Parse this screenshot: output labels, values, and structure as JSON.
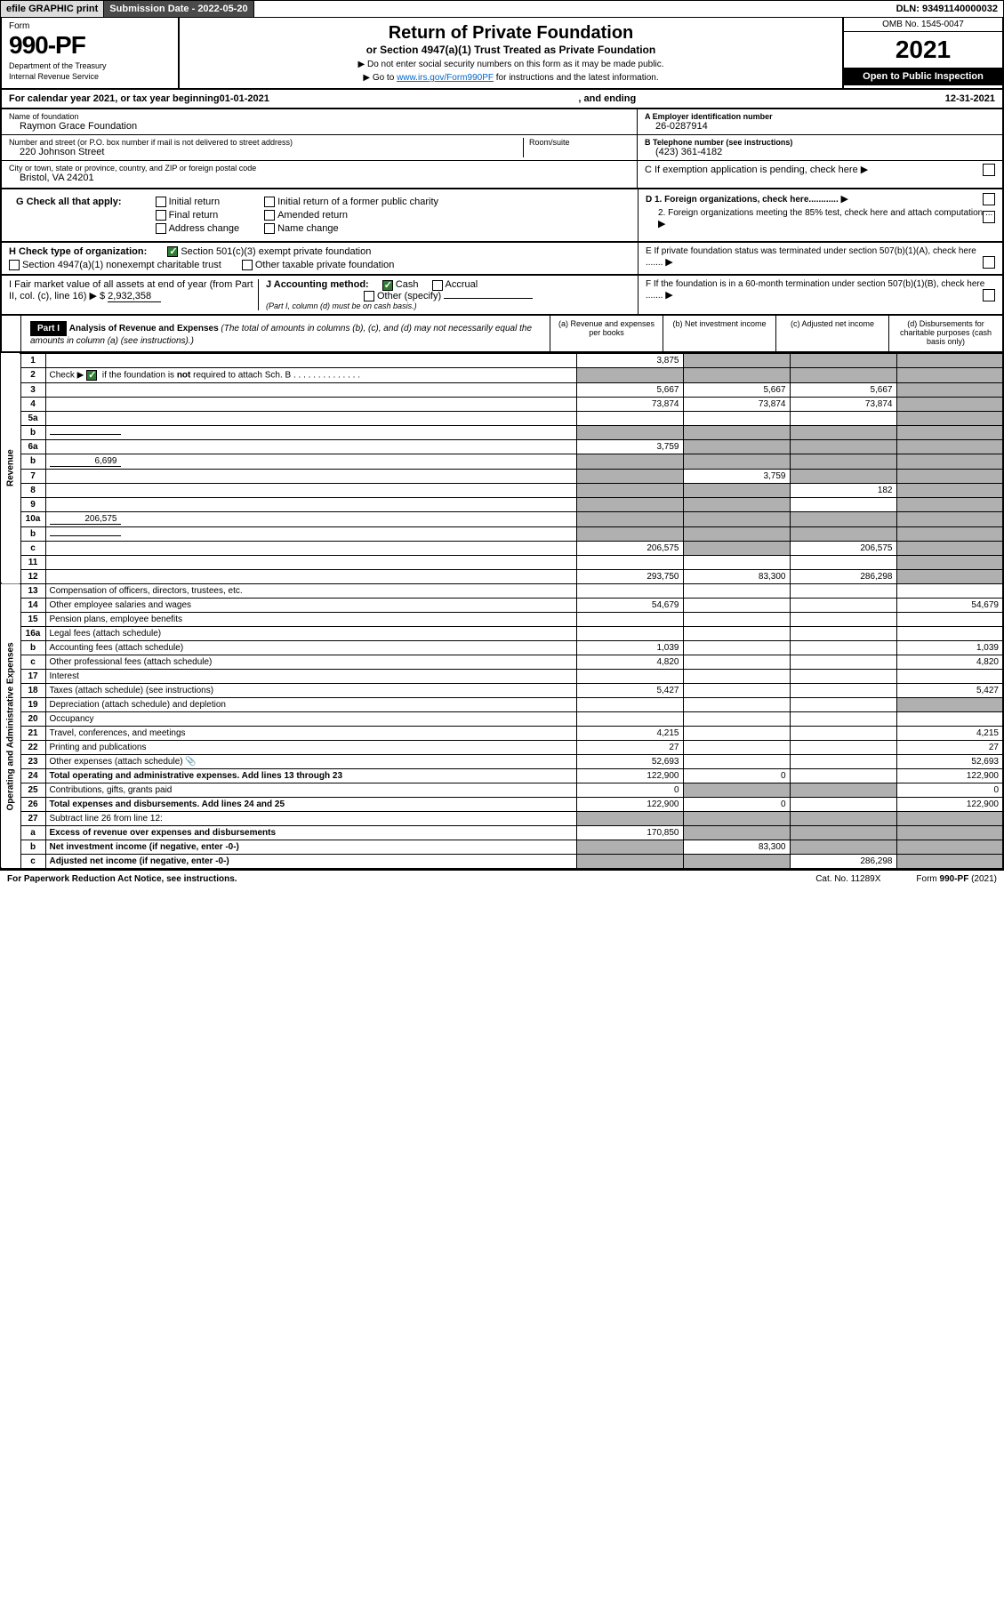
{
  "topbar": {
    "efile": "efile GRAPHIC print",
    "subdate_label": "Submission Date - 2022-05-20",
    "dln": "DLN: 93491140000032"
  },
  "header": {
    "form_label": "Form",
    "form_num": "990-PF",
    "dept1": "Department of the Treasury",
    "dept2": "Internal Revenue Service",
    "title": "Return of Private Foundation",
    "subtitle": "or Section 4947(a)(1) Trust Treated as Private Foundation",
    "note1": "▶ Do not enter social security numbers on this form as it may be made public.",
    "note2_pre": "▶ Go to ",
    "note2_link": "www.irs.gov/Form990PF",
    "note2_post": " for instructions and the latest information.",
    "omb": "OMB No. 1545-0047",
    "year": "2021",
    "open": "Open to Public Inspection"
  },
  "calyear": {
    "text_pre": "For calendar year 2021, or tax year beginning ",
    "begin": "01-01-2021",
    "text_mid": " , and ending ",
    "end": "12-31-2021"
  },
  "info": {
    "name_label": "Name of foundation",
    "name": "Raymon Grace Foundation",
    "addr_label": "Number and street (or P.O. box number if mail is not delivered to street address)",
    "addr": "220 Johnson Street",
    "room_label": "Room/suite",
    "city_label": "City or town, state or province, country, and ZIP or foreign postal code",
    "city": "Bristol, VA  24201",
    "a_label": "A Employer identification number",
    "a_val": "26-0287914",
    "b_label": "B Telephone number (see instructions)",
    "b_val": "(423) 361-4182",
    "c_label": "C If exemption application is pending, check here",
    "d1_label": "D 1. Foreign organizations, check here............",
    "d2_label": "2. Foreign organizations meeting the 85% test, check here and attach computation ...",
    "e_label": "E  If private foundation status was terminated under section 507(b)(1)(A), check here .......",
    "f_label": "F  If the foundation is in a 60-month termination under section 507(b)(1)(B), check here .......",
    "g_label": "G Check all that apply:",
    "g_initial": "Initial return",
    "g_initial_former": "Initial return of a former public charity",
    "g_final": "Final return",
    "g_amended": "Amended return",
    "g_addr": "Address change",
    "g_name": "Name change",
    "h_label": "H Check type of organization:",
    "h_501c3": "Section 501(c)(3) exempt private foundation",
    "h_4947": "Section 4947(a)(1) nonexempt charitable trust",
    "h_other": "Other taxable private foundation",
    "i_label": "I Fair market value of all assets at end of year (from Part II, col. (c), line 16) ▶ $",
    "i_val": "2,932,358",
    "j_label": "J Accounting method:",
    "j_cash": "Cash",
    "j_accrual": "Accrual",
    "j_other": "Other (specify)",
    "j_note": "(Part I, column (d) must be on cash basis.)"
  },
  "part1": {
    "header": "Part I",
    "title": "Analysis of Revenue and Expenses",
    "title_note": " (The total of amounts in columns (b), (c), and (d) may not necessarily equal the amounts in column (a) (see instructions).)",
    "col_a": "(a)   Revenue and expenses per books",
    "col_b": "(b)   Net investment income",
    "col_c": "(c)   Adjusted net income",
    "col_d": "(d)   Disbursements for charitable purposes (cash basis only)",
    "side_revenue": "Revenue",
    "side_expenses": "Operating and Administrative Expenses"
  },
  "rows": [
    {
      "n": "1",
      "d": "",
      "a": "3,875",
      "b": "",
      "c": "",
      "b_shade": true,
      "c_shade": true,
      "d_shade": true
    },
    {
      "n": "2",
      "d": "",
      "a": "",
      "b": "",
      "c": "",
      "a_shade": true,
      "b_shade": true,
      "c_shade": true,
      "d_shade": true,
      "bold_not": true
    },
    {
      "n": "3",
      "d": "",
      "a": "5,667",
      "b": "5,667",
      "c": "5,667",
      "d_shade": true
    },
    {
      "n": "4",
      "d": "",
      "a": "73,874",
      "b": "73,874",
      "c": "73,874",
      "d_shade": true
    },
    {
      "n": "5a",
      "d": "",
      "a": "",
      "b": "",
      "c": "",
      "d_shade": true
    },
    {
      "n": "b",
      "d": "",
      "a": "",
      "b": "",
      "c": "",
      "a_shade": true,
      "b_shade": true,
      "c_shade": true,
      "d_shade": true,
      "inline": true
    },
    {
      "n": "6a",
      "d": "",
      "a": "3,759",
      "b": "",
      "c": "",
      "b_shade": true,
      "c_shade": true,
      "d_shade": true
    },
    {
      "n": "b",
      "d": "",
      "a": "",
      "b": "",
      "c": "",
      "a_shade": true,
      "b_shade": true,
      "c_shade": true,
      "d_shade": true,
      "inline_val": "6,699"
    },
    {
      "n": "7",
      "d": "",
      "a": "",
      "b": "3,759",
      "c": "",
      "a_shade": true,
      "c_shade": true,
      "d_shade": true
    },
    {
      "n": "8",
      "d": "",
      "a": "",
      "b": "",
      "c": "182",
      "a_shade": true,
      "b_shade": true,
      "d_shade": true
    },
    {
      "n": "9",
      "d": "",
      "a": "",
      "b": "",
      "c": "",
      "a_shade": true,
      "b_shade": true,
      "d_shade": true
    },
    {
      "n": "10a",
      "d": "",
      "a": "",
      "b": "",
      "c": "",
      "a_shade": true,
      "b_shade": true,
      "c_shade": true,
      "d_shade": true,
      "inline_val": "206,575"
    },
    {
      "n": "b",
      "d": "",
      "a": "",
      "b": "",
      "c": "",
      "a_shade": true,
      "b_shade": true,
      "c_shade": true,
      "d_shade": true,
      "inline": true
    },
    {
      "n": "c",
      "d": "",
      "a": "206,575",
      "b": "",
      "c": "206,575",
      "b_shade": true,
      "d_shade": true
    },
    {
      "n": "11",
      "d": "",
      "a": "",
      "b": "",
      "c": "",
      "d_shade": true
    },
    {
      "n": "12",
      "d": "",
      "a": "293,750",
      "b": "83,300",
      "c": "286,298",
      "bold": true,
      "d_shade": true
    }
  ],
  "exp_rows": [
    {
      "n": "13",
      "d": "Compensation of officers, directors, trustees, etc.",
      "a": "",
      "b": "",
      "c": "",
      "dd": ""
    },
    {
      "n": "14",
      "d": "Other employee salaries and wages",
      "a": "54,679",
      "b": "",
      "c": "",
      "dd": "54,679"
    },
    {
      "n": "15",
      "d": "Pension plans, employee benefits",
      "a": "",
      "b": "",
      "c": "",
      "dd": ""
    },
    {
      "n": "16a",
      "d": "Legal fees (attach schedule)",
      "a": "",
      "b": "",
      "c": "",
      "dd": ""
    },
    {
      "n": "b",
      "d": "Accounting fees (attach schedule)",
      "a": "1,039",
      "b": "",
      "c": "",
      "dd": "1,039"
    },
    {
      "n": "c",
      "d": "Other professional fees (attach schedule)",
      "a": "4,820",
      "b": "",
      "c": "",
      "dd": "4,820"
    },
    {
      "n": "17",
      "d": "Interest",
      "a": "",
      "b": "",
      "c": "",
      "dd": ""
    },
    {
      "n": "18",
      "d": "Taxes (attach schedule) (see instructions)",
      "a": "5,427",
      "b": "",
      "c": "",
      "dd": "5,427"
    },
    {
      "n": "19",
      "d": "Depreciation (attach schedule) and depletion",
      "a": "",
      "b": "",
      "c": "",
      "dd": "",
      "d_shade": true
    },
    {
      "n": "20",
      "d": "Occupancy",
      "a": "",
      "b": "",
      "c": "",
      "dd": ""
    },
    {
      "n": "21",
      "d": "Travel, conferences, and meetings",
      "a": "4,215",
      "b": "",
      "c": "",
      "dd": "4,215"
    },
    {
      "n": "22",
      "d": "Printing and publications",
      "a": "27",
      "b": "",
      "c": "",
      "dd": "27"
    },
    {
      "n": "23",
      "d": "Other expenses (attach schedule)",
      "a": "52,693",
      "b": "",
      "c": "",
      "dd": "52,693",
      "icon": true
    },
    {
      "n": "24",
      "d": "Total operating and administrative expenses. Add lines 13 through 23",
      "a": "122,900",
      "b": "0",
      "c": "",
      "dd": "122,900",
      "bold": true
    },
    {
      "n": "25",
      "d": "Contributions, gifts, grants paid",
      "a": "0",
      "b": "",
      "c": "",
      "dd": "0",
      "b_shade": true,
      "c_shade": true
    },
    {
      "n": "26",
      "d": "Total expenses and disbursements. Add lines 24 and 25",
      "a": "122,900",
      "b": "0",
      "c": "",
      "dd": "122,900",
      "bold": true
    },
    {
      "n": "27",
      "d": "Subtract line 26 from line 12:",
      "a": "",
      "b": "",
      "c": "",
      "dd": "",
      "a_shade": true,
      "b_shade": true,
      "c_shade": true,
      "d_shade": true
    },
    {
      "n": "a",
      "d": "Excess of revenue over expenses and disbursements",
      "a": "170,850",
      "b": "",
      "c": "",
      "dd": "",
      "bold": true,
      "b_shade": true,
      "c_shade": true,
      "d_shade": true
    },
    {
      "n": "b",
      "d": "Net investment income (if negative, enter -0-)",
      "a": "",
      "b": "83,300",
      "c": "",
      "dd": "",
      "bold": true,
      "a_shade": true,
      "c_shade": true,
      "d_shade": true
    },
    {
      "n": "c",
      "d": "Adjusted net income (if negative, enter -0-)",
      "a": "",
      "b": "",
      "c": "286,298",
      "dd": "",
      "bold": true,
      "a_shade": true,
      "b_shade": true,
      "d_shade": true
    }
  ],
  "footer": {
    "left": "For Paperwork Reduction Act Notice, see instructions.",
    "mid": "Cat. No. 11289X",
    "right": "Form 990-PF (2021)"
  }
}
